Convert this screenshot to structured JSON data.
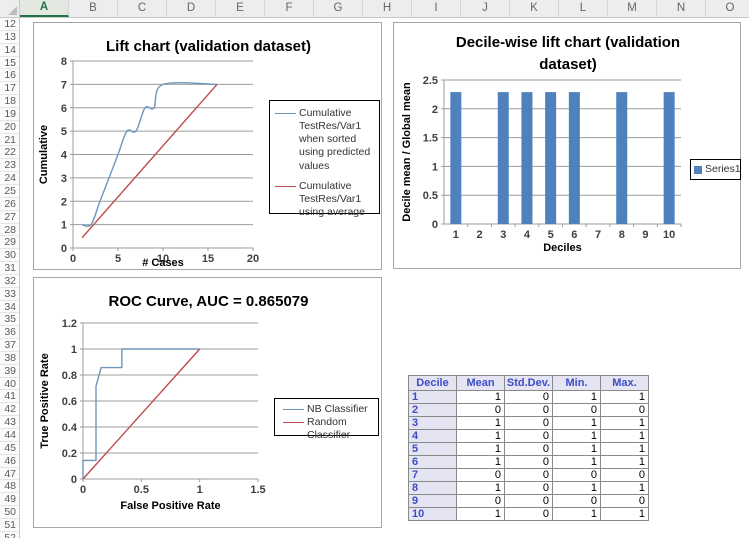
{
  "spreadsheet": {
    "column_headers": [
      "A",
      "B",
      "C",
      "D",
      "E",
      "F",
      "G",
      "H",
      "I",
      "J",
      "K",
      "L",
      "M",
      "N",
      "O"
    ],
    "selected_column": "A",
    "row_numbers": [
      12,
      13,
      14,
      15,
      16,
      17,
      18,
      19,
      20,
      21,
      22,
      23,
      24,
      25,
      26,
      27,
      28,
      29,
      30,
      31,
      32,
      33,
      34,
      35,
      36,
      37,
      38,
      39,
      40,
      41,
      42,
      43,
      44,
      45,
      46,
      47,
      48,
      49,
      50,
      51,
      52
    ],
    "selected_header_color": "#217346"
  },
  "chart_data": [
    {
      "id": "lift-chart",
      "type": "line",
      "title": "Lift chart (validation dataset)",
      "xlabel": "# Cases",
      "ylabel": "Cumulative",
      "xlim": [
        0,
        20
      ],
      "ylim": [
        0,
        8
      ],
      "xticks": [
        0,
        5,
        10,
        15,
        20
      ],
      "yticks": [
        0,
        1,
        2,
        3,
        4,
        5,
        6,
        7,
        8
      ],
      "grid": "horizontal",
      "legend_position": "right",
      "series": [
        {
          "name": "Cumulative TestRes/Var1 when sorted using predicted values",
          "color": "#6B96BE",
          "smooth": true,
          "x": [
            1,
            2,
            3,
            4,
            5,
            6,
            7,
            8,
            9,
            10,
            16
          ],
          "y": [
            1,
            1,
            2,
            3,
            4,
            5,
            5,
            6,
            6,
            7,
            7
          ]
        },
        {
          "name": "Cumulative TestRes/Var1 using average",
          "color": "#BE4B48",
          "smooth": false,
          "x": [
            1,
            16
          ],
          "y": [
            0.4375,
            7
          ]
        }
      ]
    },
    {
      "id": "decile-wise-lift-chart",
      "type": "bar",
      "title": "Decile-wise lift chart (validation dataset)",
      "title_lines": [
        "Decile-wise lift chart (validation",
        "dataset)"
      ],
      "xlabel": "Deciles",
      "ylabel": "Decile mean / Global mean",
      "ylim": [
        0,
        2.5
      ],
      "yticks": [
        0,
        0.5,
        1,
        1.5,
        2,
        2.5
      ],
      "grid": "horizontal",
      "legend_position": "right",
      "series_name": "Series1",
      "bar_color": "#4F81BD",
      "categories": [
        1,
        2,
        3,
        4,
        5,
        6,
        7,
        8,
        9,
        10
      ],
      "values": [
        2.29,
        0,
        2.29,
        2.29,
        2.29,
        2.29,
        0,
        2.29,
        0,
        2.29
      ]
    },
    {
      "id": "roc-curve",
      "type": "line",
      "title": "ROC Curve, AUC = 0.865079",
      "xlabel": "False Positive Rate",
      "ylabel": "True Positive Rate",
      "xlim": [
        0,
        1.5
      ],
      "ylim": [
        0,
        1.2
      ],
      "xticks": [
        0,
        0.5,
        1,
        1.5
      ],
      "yticks": [
        0,
        0.2,
        0.4,
        0.6,
        0.8,
        1,
        1.2
      ],
      "grid": "horizontal",
      "legend_position": "right",
      "series": [
        {
          "name": "NB Classifier",
          "color": "#6B96BE",
          "smooth": false,
          "x": [
            0,
            0,
            0.111,
            0.111,
            0.155,
            0.333,
            0.333,
            1
          ],
          "y": [
            0,
            0.143,
            0.143,
            0.714,
            0.857,
            0.857,
            1,
            1
          ]
        },
        {
          "name": "Random Classifier",
          "color": "#BE4B48",
          "smooth": false,
          "x": [
            0,
            1
          ],
          "y": [
            0,
            1
          ]
        }
      ]
    }
  ],
  "table": {
    "headers": [
      "Decile",
      "Mean",
      "Std.Dev.",
      "Min.",
      "Max."
    ],
    "rows": [
      [
        1,
        1,
        0,
        1,
        1
      ],
      [
        2,
        0,
        0,
        0,
        0
      ],
      [
        3,
        1,
        0,
        1,
        1
      ],
      [
        4,
        1,
        0,
        1,
        1
      ],
      [
        5,
        1,
        0,
        1,
        1
      ],
      [
        6,
        1,
        0,
        1,
        1
      ],
      [
        7,
        0,
        0,
        0,
        0
      ],
      [
        8,
        1,
        0,
        1,
        1
      ],
      [
        9,
        0,
        0,
        0,
        0
      ],
      [
        10,
        1,
        0,
        1,
        1
      ]
    ],
    "header_text_color": "#3D4EC6",
    "header_bg_color": "#E4E4F2"
  }
}
